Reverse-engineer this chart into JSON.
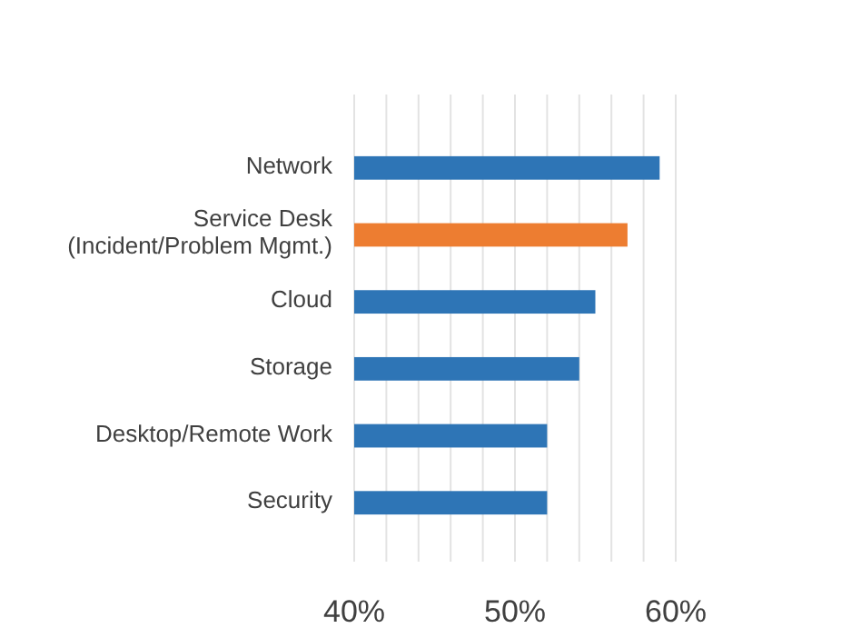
{
  "chart_data": {
    "type": "bar",
    "orientation": "horizontal",
    "categories": [
      "Network",
      "Service Desk\n(Incident/Problem Mgmt.)",
      "Cloud",
      "Storage",
      "Desktop/Remote Work",
      "Security"
    ],
    "values": [
      59,
      57,
      55,
      54,
      52,
      52
    ],
    "colors": [
      "#2e75b6",
      "#ed7d31",
      "#2e75b6",
      "#2e75b6",
      "#2e75b6",
      "#2e75b6"
    ],
    "xlim": [
      40,
      60
    ],
    "xticks": [
      {
        "value": 40,
        "label": "40%"
      },
      {
        "value": 42,
        "label": null
      },
      {
        "value": 44,
        "label": null
      },
      {
        "value": 46,
        "label": null
      },
      {
        "value": 48,
        "label": null
      },
      {
        "value": 50,
        "label": "50%"
      },
      {
        "value": 52,
        "label": null
      },
      {
        "value": 54,
        "label": null
      },
      {
        "value": 56,
        "label": null
      },
      {
        "value": 58,
        "label": null
      },
      {
        "value": 60,
        "label": "60%"
      }
    ],
    "grid": "x"
  }
}
